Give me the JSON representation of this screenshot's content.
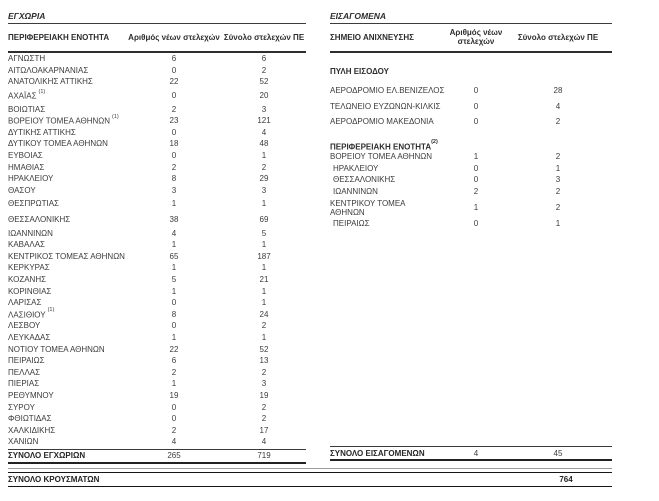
{
  "domestic_table": {
    "title": "ΕΓΧΩΡΙΑ",
    "columns": {
      "name": "ΠΕΡΙΦΕΡΕΙΑΚΗ ΕΝΟΤΗΤΑ",
      "new": "Αριθμός νέων στελεχών",
      "total": "Σύνολο στελεχών ΠΕ"
    },
    "rows": [
      {
        "label": "ΑΓΝΩΣΤΗ",
        "new": 6,
        "total": 6
      },
      {
        "label": "ΑΙΤΩΛΟΑΚΑΡΝΑΝΙΑΣ",
        "new": 0,
        "total": 2
      },
      {
        "label": "ΑΝΑΤΟΛΙΚΗΣ ΑΤΤΙΚΗΣ",
        "new": 22,
        "total": 52
      },
      {
        "label": "ΑΧΑΪΑΣ",
        "sup": "(1)",
        "new": 0,
        "total": 20
      },
      {
        "label": "ΒΟΙΩΤΙΑΣ",
        "new": 2,
        "total": 3
      },
      {
        "label": "ΒΟΡΕΙΟΥ ΤΟΜΕΑ ΑΘΗΝΩΝ",
        "sup": "(1)",
        "new": 23,
        "total": 121
      },
      {
        "label": "ΔΥΤΙΚΗΣ ΑΤΤΙΚΗΣ",
        "new": 0,
        "total": 4
      },
      {
        "label": "ΔΥΤΙΚΟΥ ΤΟΜΕΑ ΑΘΗΝΩΝ",
        "new": 18,
        "total": 48
      },
      {
        "label": "ΕΥΒΟΙΑΣ",
        "new": 0,
        "total": 1
      },
      {
        "label": "ΗΜΑΘΙΑΣ",
        "new": 2,
        "total": 2
      },
      {
        "label": "ΗΡΑΚΛΕΙΟΥ",
        "new": 8,
        "total": 29
      },
      {
        "label": "ΘΑΣΟΥ",
        "new": 3,
        "total": 3
      },
      {
        "label": "ΘΕΣΠΡΩΤΙΑΣ",
        "new": 1,
        "total": 1
      },
      {
        "label": "ΘΕΣΣΑΛΟΝΙΚΗΣ",
        "new": 38,
        "total": 69
      },
      {
        "label": "ΙΩΑΝΝΙΝΩΝ",
        "new": 4,
        "total": 5
      },
      {
        "label": "ΚΑΒΑΛΑΣ",
        "new": 1,
        "total": 1
      },
      {
        "label": "ΚΕΝΤΡΙΚΟΣ ΤΟΜΕΑΣ ΑΘΗΝΩΝ",
        "new": 65,
        "total": 187
      },
      {
        "label": "ΚΕΡΚΥΡΑΣ",
        "new": 1,
        "total": 1
      },
      {
        "label": "ΚΟΖΑΝΗΣ",
        "new": 5,
        "total": 21
      },
      {
        "label": "ΚΟΡΙΝΘΙΑΣ",
        "new": 1,
        "total": 1
      },
      {
        "label": "ΛΑΡΙΣΑΣ",
        "new": 0,
        "total": 1
      },
      {
        "label": "ΛΑΣΙΘΙΟΥ",
        "sup": "(1)",
        "new": 8,
        "total": 24
      },
      {
        "label": "ΛΕΣΒΟΥ",
        "new": 0,
        "total": 2
      },
      {
        "label": "ΛΕΥΚΑΔΑΣ",
        "new": 1,
        "total": 1
      },
      {
        "label": "ΝΟΤΙΟΥ ΤΟΜΕΑ ΑΘΗΝΩΝ",
        "new": 22,
        "total": 52
      },
      {
        "label": "ΠΕΙΡΑΙΩΣ",
        "new": 6,
        "total": 13
      },
      {
        "label": "ΠΕΛΛΑΣ",
        "new": 2,
        "total": 2
      },
      {
        "label": "ΠΙΕΡΙΑΣ",
        "new": 1,
        "total": 3
      },
      {
        "label": "ΡΕΘΥΜΝΟΥ",
        "new": 19,
        "total": 19
      },
      {
        "label": "ΣΥΡΟΥ",
        "new": 0,
        "total": 2
      },
      {
        "label": "ΦΘΙΩΤΙΔΑΣ",
        "new": 0,
        "total": 2
      },
      {
        "label": "ΧΑΛΚΙΔΙΚΗΣ",
        "new": 2,
        "total": 17
      },
      {
        "label": "ΧΑΝΙΩΝ",
        "new": 4,
        "total": 4
      }
    ],
    "total_row": {
      "label": "ΣΥΝΟΛΟ ΕΓΧΩΡΙΩΝ",
      "new": 265,
      "total": 719
    }
  },
  "imported_table": {
    "title": "ΕΙΣΑΓΟΜΕΝΑ",
    "columns": {
      "name": "ΣΗΜΕΙΟ ΑΝΙΧΝΕΥΣΗΣ",
      "new": "Αριθμός νέων στελεχών",
      "total": "Σύνολο στελεχών ΠΕ"
    },
    "sections": [
      {
        "title": "ΠΥΛΗ ΕΙΣΟΔΟΥ",
        "rows": [
          {
            "label": "ΑΕΡΟΔΡΟΜΙΟ ΕΛ.ΒΕΝΙΖΕΛΟΣ",
            "new": 0,
            "total": 28
          },
          {
            "label": "ΤΕΛΩΝΕΙΟ ΕΥΖΩΝΩΝ-ΚΙΛΚΙΣ",
            "new": 0,
            "total": 4
          },
          {
            "label": "ΑΕΡΟΔΡΟΜΙΟ ΜΑΚΕΔΟΝΙΑ",
            "new": 0,
            "total": 2
          }
        ]
      },
      {
        "title": "ΠΕΡΙΦΕΡΕΙΑΚΗ ΕΝΟΤΗΤΑ",
        "sup": "(2)",
        "rows": [
          {
            "label": "ΒΟΡΕΙΟΥ ΤΟΜΕΑ ΑΘΗΝΩΝ",
            "new": 1,
            "total": 2
          },
          {
            "label": "ΗΡΑΚΛΕΙΟΥ",
            "new": 0,
            "total": 1,
            "indent": true
          },
          {
            "label": "ΘΕΣΣΑΛΟΝΙΚΗΣ",
            "new": 0,
            "total": 3,
            "indent": true
          },
          {
            "label": "ΙΩΑΝΝΙΝΩΝ",
            "new": 2,
            "total": 2,
            "indent": true
          },
          {
            "label": "ΚΕΝΤΡΙΚΟΥ ΤΟΜΕΑ\nΑΘΗΝΩΝ",
            "new": 1,
            "total": 2,
            "twoline": true
          },
          {
            "label": "ΠΕΙΡΑΙΩΣ",
            "new": 0,
            "total": 1,
            "indent": true
          }
        ]
      }
    ],
    "total_row": {
      "label": "ΣΥΝΟΛΟ ΕΙΣΑΓΟΜΕΝΩΝ",
      "new": 4,
      "total": 45
    }
  },
  "grand_total": {
    "label": "ΣΥΝΟΛΟ ΚΡΟΥΣΜΑΤΩΝ",
    "value": 764
  }
}
